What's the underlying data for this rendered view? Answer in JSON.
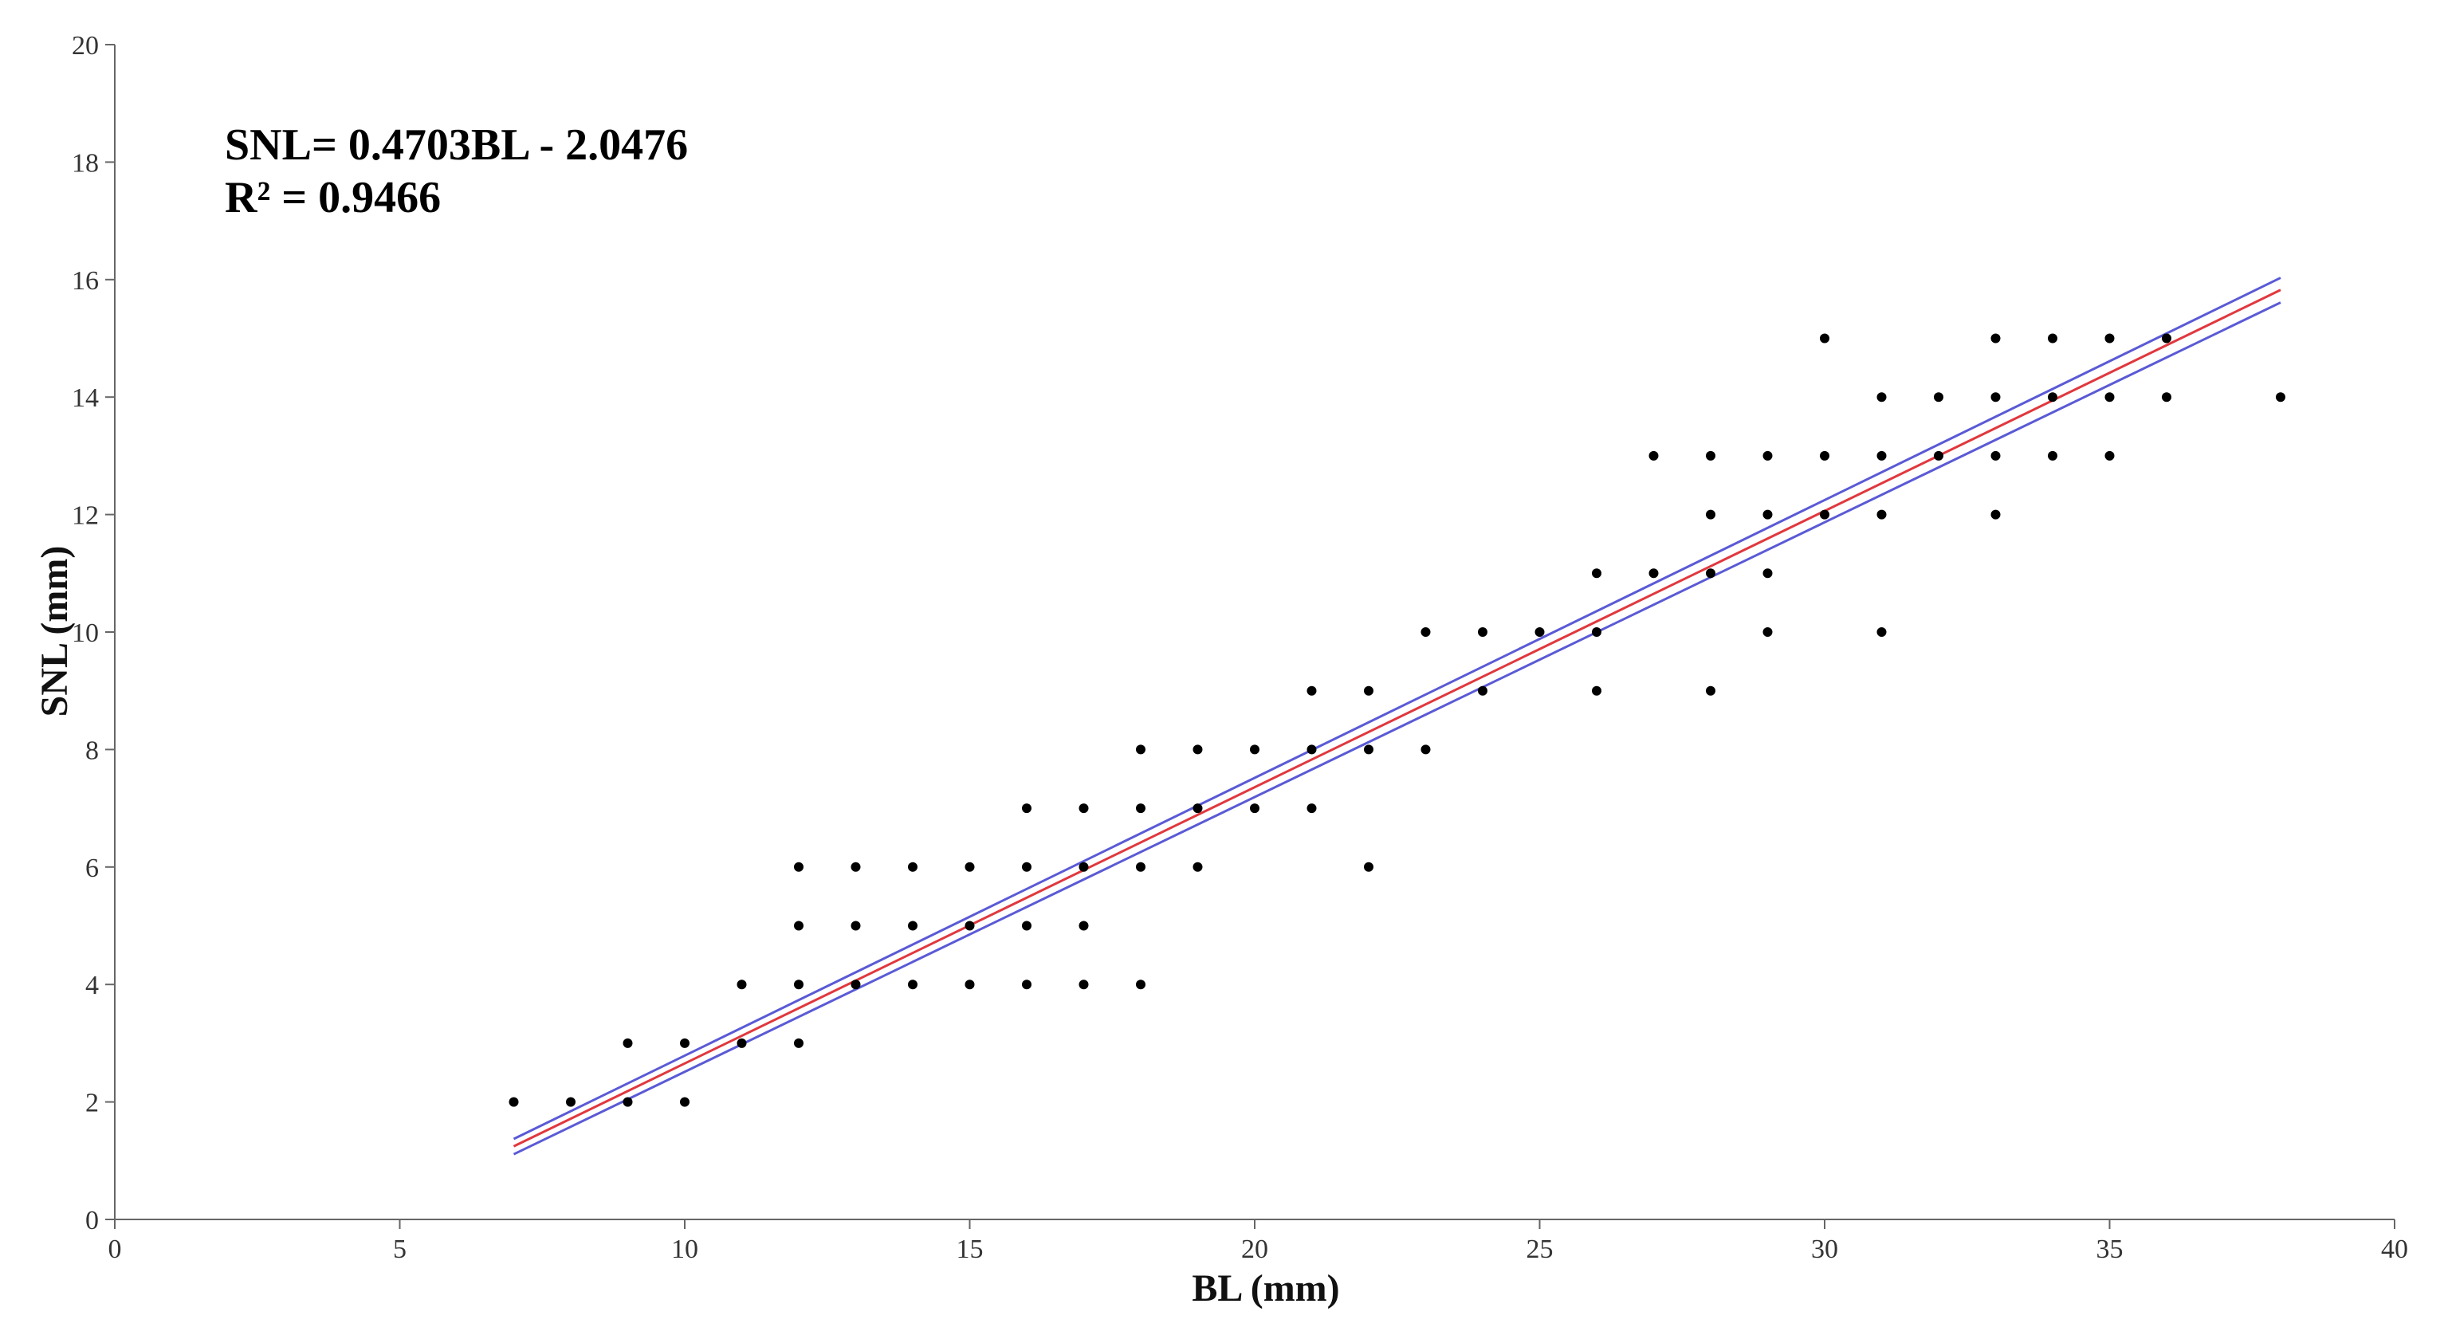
{
  "chart_data": {
    "type": "scatter",
    "title": "",
    "xlabel": "BL (mm)",
    "ylabel": "SNL (mm)",
    "xlim": [
      0,
      40
    ],
    "ylim": [
      0,
      20
    ],
    "xticks": [
      0,
      5,
      10,
      15,
      20,
      25,
      30,
      35,
      40
    ],
    "yticks": [
      0,
      2,
      4,
      6,
      8,
      10,
      12,
      14,
      16,
      18,
      20
    ],
    "grid": false,
    "annotations": [
      "SNL= 0.4703BL - 2.0476",
      "R² = 0.9466"
    ],
    "points": [
      [
        7,
        2
      ],
      [
        8,
        2
      ],
      [
        9,
        2
      ],
      [
        9,
        3
      ],
      [
        10,
        2
      ],
      [
        10,
        3
      ],
      [
        11,
        3
      ],
      [
        11,
        4
      ],
      [
        12,
        3
      ],
      [
        12,
        4
      ],
      [
        12,
        5
      ],
      [
        12,
        6
      ],
      [
        13,
        4
      ],
      [
        13,
        5
      ],
      [
        13,
        6
      ],
      [
        14,
        4
      ],
      [
        14,
        5
      ],
      [
        14,
        6
      ],
      [
        15,
        4
      ],
      [
        15,
        5
      ],
      [
        15,
        6
      ],
      [
        16,
        4
      ],
      [
        16,
        5
      ],
      [
        16,
        6
      ],
      [
        16,
        7
      ],
      [
        17,
        4
      ],
      [
        17,
        5
      ],
      [
        17,
        6
      ],
      [
        17,
        7
      ],
      [
        18,
        4
      ],
      [
        18,
        6
      ],
      [
        18,
        7
      ],
      [
        18,
        8
      ],
      [
        19,
        6
      ],
      [
        19,
        7
      ],
      [
        19,
        8
      ],
      [
        20,
        7
      ],
      [
        20,
        8
      ],
      [
        21,
        7
      ],
      [
        21,
        8
      ],
      [
        21,
        9
      ],
      [
        22,
        6
      ],
      [
        22,
        8
      ],
      [
        22,
        9
      ],
      [
        23,
        8
      ],
      [
        23,
        10
      ],
      [
        24,
        9
      ],
      [
        24,
        10
      ],
      [
        25,
        10
      ],
      [
        26,
        9
      ],
      [
        26,
        10
      ],
      [
        26,
        11
      ],
      [
        27,
        11
      ],
      [
        27,
        13
      ],
      [
        28,
        9
      ],
      [
        28,
        11
      ],
      [
        28,
        12
      ],
      [
        28,
        13
      ],
      [
        29,
        10
      ],
      [
        29,
        11
      ],
      [
        29,
        12
      ],
      [
        29,
        13
      ],
      [
        30,
        12
      ],
      [
        30,
        13
      ],
      [
        30,
        15
      ],
      [
        31,
        10
      ],
      [
        31,
        12
      ],
      [
        31,
        13
      ],
      [
        31,
        14
      ],
      [
        32,
        13
      ],
      [
        32,
        14
      ],
      [
        33,
        12
      ],
      [
        33,
        13
      ],
      [
        33,
        14
      ],
      [
        33,
        15
      ],
      [
        34,
        13
      ],
      [
        34,
        14
      ],
      [
        34,
        15
      ],
      [
        35,
        13
      ],
      [
        35,
        14
      ],
      [
        35,
        15
      ],
      [
        36,
        14
      ],
      [
        36,
        15
      ],
      [
        38,
        14
      ]
    ],
    "fit_line": {
      "slope": 0.4703,
      "intercept": -2.0476,
      "x_range": [
        7,
        38
      ],
      "color": "#e0383e"
    },
    "confidence_band": {
      "upper": [
        [
          7,
          1.37
        ],
        [
          38,
          16.03
        ]
      ],
      "lower": [
        [
          7,
          1.11
        ],
        [
          38,
          15.61
        ]
      ],
      "color": "#5a5ad6"
    },
    "point_color": "#000000",
    "axis_color": "#666666"
  }
}
